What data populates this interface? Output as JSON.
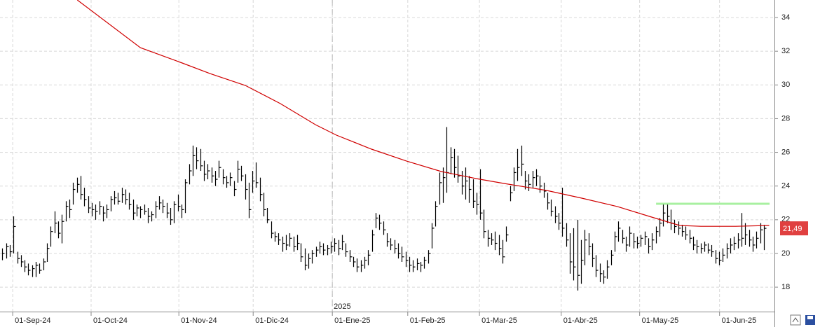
{
  "chart_data": {
    "type": "ohlc",
    "bars": [
      [
        20.3,
        19.6,
        20.0
      ],
      [
        20.6,
        19.7,
        20.4
      ],
      [
        20.5,
        19.8,
        20.1
      ],
      [
        22.2,
        20.0,
        21.6
      ],
      [
        20.1,
        19.4,
        19.7
      ],
      [
        19.9,
        19.2,
        19.5
      ],
      [
        19.6,
        18.9,
        19.2
      ],
      [
        19.4,
        18.7,
        19.0
      ],
      [
        19.3,
        18.6,
        19.1
      ],
      [
        19.5,
        18.6,
        19.3
      ],
      [
        19.4,
        18.8,
        19.0
      ],
      [
        19.7,
        19.0,
        19.5
      ],
      [
        20.6,
        19.5,
        20.3
      ],
      [
        21.6,
        20.4,
        21.3
      ],
      [
        22.5,
        21.2,
        21.8
      ],
      [
        21.9,
        20.9,
        21.2
      ],
      [
        22.3,
        20.6,
        21.9
      ],
      [
        23.1,
        21.9,
        22.8
      ],
      [
        23.2,
        22.1,
        22.6
      ],
      [
        24.2,
        22.9,
        23.8
      ],
      [
        24.5,
        23.6,
        24.1
      ],
      [
        24.6,
        23.2,
        23.5
      ],
      [
        23.9,
        22.8,
        23.2
      ],
      [
        23.4,
        22.4,
        22.7
      ],
      [
        23.0,
        22.2,
        22.6
      ],
      [
        22.9,
        22.0,
        22.5
      ],
      [
        23.1,
        22.3,
        22.8
      ],
      [
        22.8,
        21.9,
        22.4
      ],
      [
        22.9,
        22.1,
        22.6
      ],
      [
        23.4,
        22.5,
        23.2
      ],
      [
        23.7,
        22.9,
        23.3
      ],
      [
        23.6,
        22.9,
        23.1
      ],
      [
        23.9,
        23.0,
        23.5
      ],
      [
        23.8,
        22.9,
        23.2
      ],
      [
        23.6,
        22.6,
        22.9
      ],
      [
        23.2,
        22.0,
        22.4
      ],
      [
        22.9,
        22.2,
        22.7
      ],
      [
        22.8,
        22.1,
        22.6
      ],
      [
        22.9,
        22.3,
        22.5
      ],
      [
        22.7,
        21.8,
        22.2
      ],
      [
        22.5,
        21.9,
        22.3
      ],
      [
        23.1,
        22.1,
        22.8
      ],
      [
        23.4,
        22.6,
        23.0
      ],
      [
        23.2,
        22.4,
        22.8
      ],
      [
        23.0,
        22.1,
        22.4
      ],
      [
        22.7,
        21.7,
        22.0
      ],
      [
        23.1,
        21.8,
        22.9
      ],
      [
        23.5,
        22.5,
        22.8
      ],
      [
        22.9,
        22.1,
        22.6
      ],
      [
        24.4,
        22.4,
        24.2
      ],
      [
        25.3,
        24.1,
        24.9
      ],
      [
        26.4,
        24.6,
        25.8
      ],
      [
        26.3,
        25.0,
        25.5
      ],
      [
        26.2,
        24.9,
        25.2
      ],
      [
        25.5,
        24.3,
        24.7
      ],
      [
        25.3,
        24.4,
        24.9
      ],
      [
        25.1,
        24.2,
        24.6
      ],
      [
        24.9,
        24.0,
        24.4
      ],
      [
        25.5,
        24.5,
        25.1
      ],
      [
        25.0,
        24.1,
        24.5
      ],
      [
        24.6,
        23.9,
        24.2
      ],
      [
        24.8,
        24.0,
        24.5
      ],
      [
        24.3,
        23.4,
        23.8
      ],
      [
        25.5,
        24.2,
        25.0
      ],
      [
        25.2,
        24.3,
        24.6
      ],
      [
        24.7,
        23.2,
        23.8
      ],
      [
        24.2,
        22.1,
        22.6
      ],
      [
        24.9,
        23.6,
        24.3
      ],
      [
        25.4,
        23.9,
        24.2
      ],
      [
        24.5,
        23.1,
        23.5
      ],
      [
        23.6,
        22.2,
        22.6
      ],
      [
        22.7,
        21.8,
        22.0
      ],
      [
        21.9,
        20.9,
        21.2
      ],
      [
        21.3,
        20.7,
        21.0
      ],
      [
        21.2,
        20.5,
        20.8
      ],
      [
        21.0,
        20.1,
        20.6
      ],
      [
        21.1,
        20.2,
        20.5
      ],
      [
        21.2,
        20.4,
        20.9
      ],
      [
        21.0,
        20.1,
        20.4
      ],
      [
        21.1,
        20.2,
        20.6
      ],
      [
        20.6,
        19.5,
        19.8
      ],
      [
        20.3,
        19.0,
        19.3
      ],
      [
        20.0,
        19.1,
        19.7
      ],
      [
        20.2,
        19.4,
        20.0
      ],
      [
        20.4,
        19.8,
        20.2
      ],
      [
        20.7,
        20.0,
        20.4
      ],
      [
        20.6,
        19.9,
        20.2
      ],
      [
        20.5,
        19.9,
        20.3
      ],
      [
        20.7,
        20.0,
        20.4
      ],
      [
        20.9,
        20.1,
        20.6
      ],
      [
        20.8,
        19.9,
        20.3
      ],
      [
        21.1,
        20.2,
        20.7
      ],
      [
        20.6,
        19.8,
        20.1
      ],
      [
        20.2,
        19.5,
        19.8
      ],
      [
        19.8,
        19.2,
        19.5
      ],
      [
        19.7,
        18.9,
        19.2
      ],
      [
        19.6,
        18.9,
        19.3
      ],
      [
        19.8,
        19.1,
        19.6
      ],
      [
        20.2,
        19.3,
        19.9
      ],
      [
        21.4,
        20.1,
        21.1
      ],
      [
        22.4,
        21.5,
        22.1
      ],
      [
        22.3,
        21.4,
        21.8
      ],
      [
        21.9,
        21.1,
        21.4
      ],
      [
        21.2,
        20.4,
        20.7
      ],
      [
        20.9,
        20.2,
        20.5
      ],
      [
        20.8,
        20.0,
        20.3
      ],
      [
        20.6,
        19.7,
        20.0
      ],
      [
        20.4,
        19.5,
        19.8
      ],
      [
        20.1,
        19.2,
        19.6
      ],
      [
        19.8,
        18.9,
        19.3
      ],
      [
        19.6,
        18.9,
        19.2
      ],
      [
        19.7,
        19.0,
        19.4
      ],
      [
        19.5,
        18.9,
        19.3
      ],
      [
        19.8,
        19.1,
        19.6
      ],
      [
        20.2,
        19.4,
        20.0
      ],
      [
        21.8,
        20.3,
        21.5
      ],
      [
        23.1,
        21.6,
        22.8
      ],
      [
        24.8,
        22.9,
        24.2
      ],
      [
        25.1,
        23.0,
        24.5
      ],
      [
        27.5,
        23.6,
        24.8
      ],
      [
        26.3,
        24.7,
        25.7
      ],
      [
        26.2,
        24.5,
        25.1
      ],
      [
        25.8,
        24.2,
        24.6
      ],
      [
        24.9,
        23.5,
        24.0
      ],
      [
        25.1,
        23.2,
        24.3
      ],
      [
        24.6,
        23.0,
        23.8
      ],
      [
        24.4,
        22.7,
        23.1
      ],
      [
        23.6,
        22.3,
        22.9
      ],
      [
        25.0,
        22.0,
        22.4
      ],
      [
        22.6,
        20.9,
        21.3
      ],
      [
        21.4,
        20.4,
        20.9
      ],
      [
        21.2,
        20.5,
        20.8
      ],
      [
        21.3,
        20.2,
        20.6
      ],
      [
        21.1,
        19.9,
        20.3
      ],
      [
        20.8,
        19.4,
        19.8
      ],
      [
        21.6,
        20.7,
        21.1
      ],
      [
        24.0,
        23.1,
        23.6
      ],
      [
        25.1,
        23.7,
        24.8
      ],
      [
        26.2,
        24.3,
        25.1
      ],
      [
        26.4,
        24.6,
        25.3
      ],
      [
        24.9,
        23.8,
        24.3
      ],
      [
        24.7,
        23.7,
        24.1
      ],
      [
        24.9,
        23.9,
        24.5
      ],
      [
        25.0,
        24.0,
        24.6
      ],
      [
        24.6,
        23.6,
        24.0
      ],
      [
        24.2,
        23.3,
        23.7
      ],
      [
        23.6,
        22.6,
        23.0
      ],
      [
        23.2,
        22.2,
        22.5
      ],
      [
        22.8,
        21.8,
        22.2
      ],
      [
        22.4,
        21.4,
        21.8
      ],
      [
        23.9,
        21.0,
        21.5
      ],
      [
        21.8,
        20.4,
        20.8
      ],
      [
        21.2,
        18.8,
        19.5
      ],
      [
        21.5,
        18.4,
        19.2
      ],
      [
        22.0,
        17.8,
        18.7
      ],
      [
        20.8,
        18.2,
        19.6
      ],
      [
        21.4,
        19.3,
        20.8
      ],
      [
        21.2,
        19.9,
        20.4
      ],
      [
        20.6,
        19.2,
        19.7
      ],
      [
        19.9,
        18.6,
        19.0
      ],
      [
        19.4,
        18.3,
        18.8
      ],
      [
        19.0,
        18.2,
        18.6
      ],
      [
        19.6,
        18.5,
        19.2
      ],
      [
        20.2,
        19.3,
        19.9
      ],
      [
        21.3,
        20.1,
        21.0
      ],
      [
        21.9,
        20.7,
        21.5
      ],
      [
        21.4,
        20.6,
        20.9
      ],
      [
        21.0,
        20.1,
        20.5
      ],
      [
        21.6,
        20.4,
        21.2
      ],
      [
        21.2,
        20.3,
        20.7
      ],
      [
        21.0,
        20.3,
        20.6
      ],
      [
        21.1,
        20.4,
        20.9
      ],
      [
        21.3,
        20.5,
        21.0
      ],
      [
        20.9,
        20.0,
        20.4
      ],
      [
        21.2,
        20.2,
        20.8
      ],
      [
        21.6,
        20.6,
        21.3
      ],
      [
        22.1,
        21.0,
        21.8
      ],
      [
        22.9,
        21.6,
        22.4
      ],
      [
        22.9,
        21.8,
        22.2
      ],
      [
        22.6,
        21.4,
        21.8
      ],
      [
        22.0,
        21.2,
        21.6
      ],
      [
        21.9,
        21.1,
        21.5
      ],
      [
        21.7,
        21.0,
        21.3
      ],
      [
        21.6,
        20.8,
        21.1
      ],
      [
        21.4,
        20.6,
        20.9
      ],
      [
        21.0,
        20.2,
        20.5
      ],
      [
        20.8,
        20.0,
        20.4
      ],
      [
        20.6,
        20.0,
        20.3
      ],
      [
        20.7,
        20.1,
        20.5
      ],
      [
        20.6,
        20.0,
        20.2
      ],
      [
        20.5,
        19.8,
        20.1
      ],
      [
        20.2,
        19.4,
        19.7
      ],
      [
        20.1,
        19.3,
        19.6
      ],
      [
        20.3,
        19.5,
        19.9
      ],
      [
        20.6,
        19.7,
        20.3
      ],
      [
        20.9,
        20.0,
        20.5
      ],
      [
        21.0,
        20.2,
        20.6
      ],
      [
        21.2,
        20.3,
        20.8
      ],
      [
        22.4,
        20.4,
        20.9
      ],
      [
        21.8,
        20.5,
        21.1
      ],
      [
        21.4,
        20.4,
        20.8
      ],
      [
        21.0,
        20.1,
        20.5
      ],
      [
        21.3,
        20.3,
        20.9
      ],
      [
        21.8,
        20.6,
        21.4
      ],
      [
        21.7,
        20.2,
        21.49
      ]
    ],
    "bar_color": "#000000",
    "last_label": "21,49",
    "last_color": "#e04040",
    "ma": {
      "color": "#d00000",
      "x": [
        20.1,
        37.0,
        48.2,
        55.7,
        65.1,
        74.5,
        83.9,
        89.5,
        98.9,
        108.3,
        117.6,
        127.0,
        134.5,
        145.8,
        155.2,
        164.6,
        173.9,
        181.4,
        187.1,
        196.4,
        205.4
      ],
      "values": [
        35.04,
        32.21,
        31.3,
        30.67,
        29.97,
        28.89,
        27.64,
        27.02,
        26.19,
        25.48,
        24.86,
        24.44,
        24.15,
        23.74,
        23.28,
        22.79,
        22.16,
        21.66,
        21.61,
        21.61,
        21.66
      ]
    },
    "level": {
      "x": [
        175.1,
        205.5
      ],
      "value": 22.95,
      "color": "#a8f0a0"
    },
    "year_marker": {
      "x": 88.4,
      "label": "2025"
    },
    "xlim": [
      -0.6,
      206.8
    ],
    "ylim": [
      16.55,
      35.04
    ],
    "yticks": [
      18,
      20,
      22,
      24,
      26,
      28,
      30,
      32,
      34
    ],
    "xticks": [
      {
        "value": 2.8,
        "label": "01-Sep-24"
      },
      {
        "value": 23.8,
        "label": "01-Oct-24"
      },
      {
        "value": 47.3,
        "label": "01-Nov-24"
      },
      {
        "value": 67.2,
        "label": "01-Dic-24"
      },
      {
        "value": 88.4,
        "label": "01-Ene-25"
      },
      {
        "value": 108.6,
        "label": "01-Feb-25"
      },
      {
        "value": 127.8,
        "label": "01-Mar-25"
      },
      {
        "value": 149.7,
        "label": "01-Abr-25"
      },
      {
        "value": 170.7,
        "label": "01-May-25"
      },
      {
        "value": 192.1,
        "label": "01-Jun-25"
      }
    ],
    "grid": true
  }
}
